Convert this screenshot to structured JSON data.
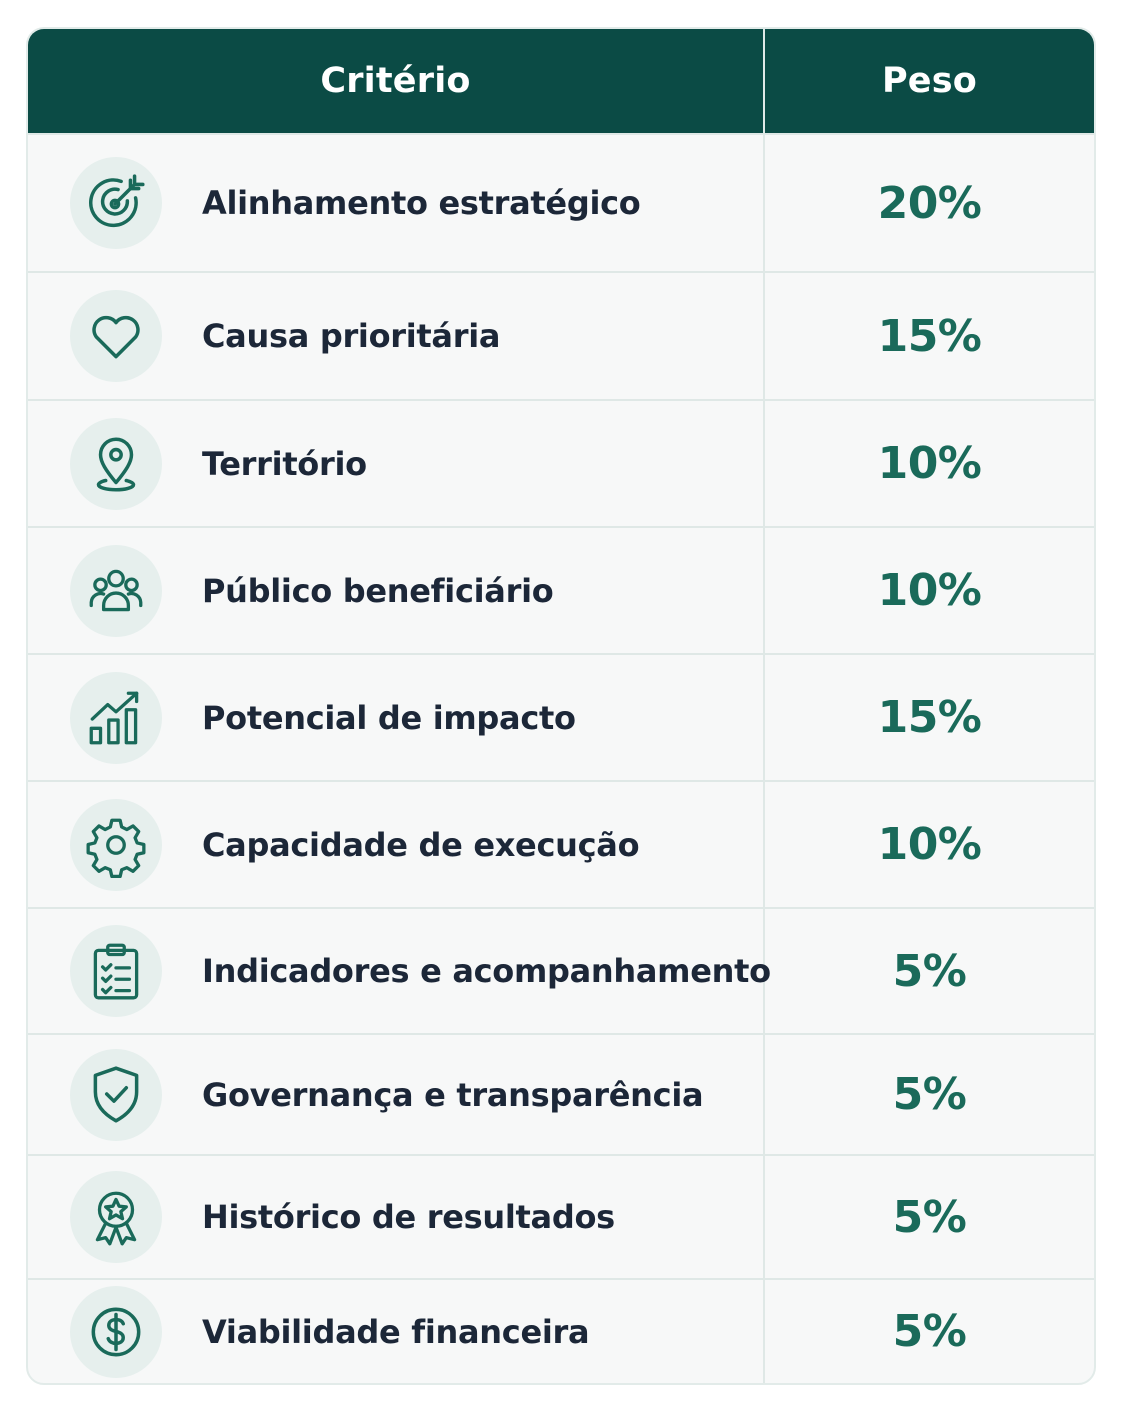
{
  "header": {
    "criterio": "Critério",
    "peso": "Peso"
  },
  "rows": [
    {
      "icon": "target-icon",
      "label": "Alinhamento estratégico",
      "peso": "20%"
    },
    {
      "icon": "heart-icon",
      "label": "Causa prioritária",
      "peso": "15%"
    },
    {
      "icon": "map-pin-icon",
      "label": "Território",
      "peso": "10%"
    },
    {
      "icon": "people-icon",
      "label": "Público beneficiário",
      "peso": "10%"
    },
    {
      "icon": "growth-chart-icon",
      "label": "Potencial de impacto",
      "peso": "15%"
    },
    {
      "icon": "gear-icon",
      "label": "Capacidade de execução",
      "peso": "10%"
    },
    {
      "icon": "clipboard-checklist-icon",
      "label": "Indicadores e acompanhamento",
      "peso": "5%"
    },
    {
      "icon": "shield-check-icon",
      "label": "Governança e transparência",
      "peso": "5%"
    },
    {
      "icon": "award-badge-icon",
      "label": "Histórico de resultados",
      "peso": "5%"
    },
    {
      "icon": "dollar-coin-icon",
      "label": "Viabilidade financeira",
      "peso": "5%"
    }
  ],
  "colors": {
    "header_bg": "#0b4b45",
    "accent": "#1a6a5a",
    "icon_bg": "#e6efed",
    "text": "#1c2738"
  }
}
